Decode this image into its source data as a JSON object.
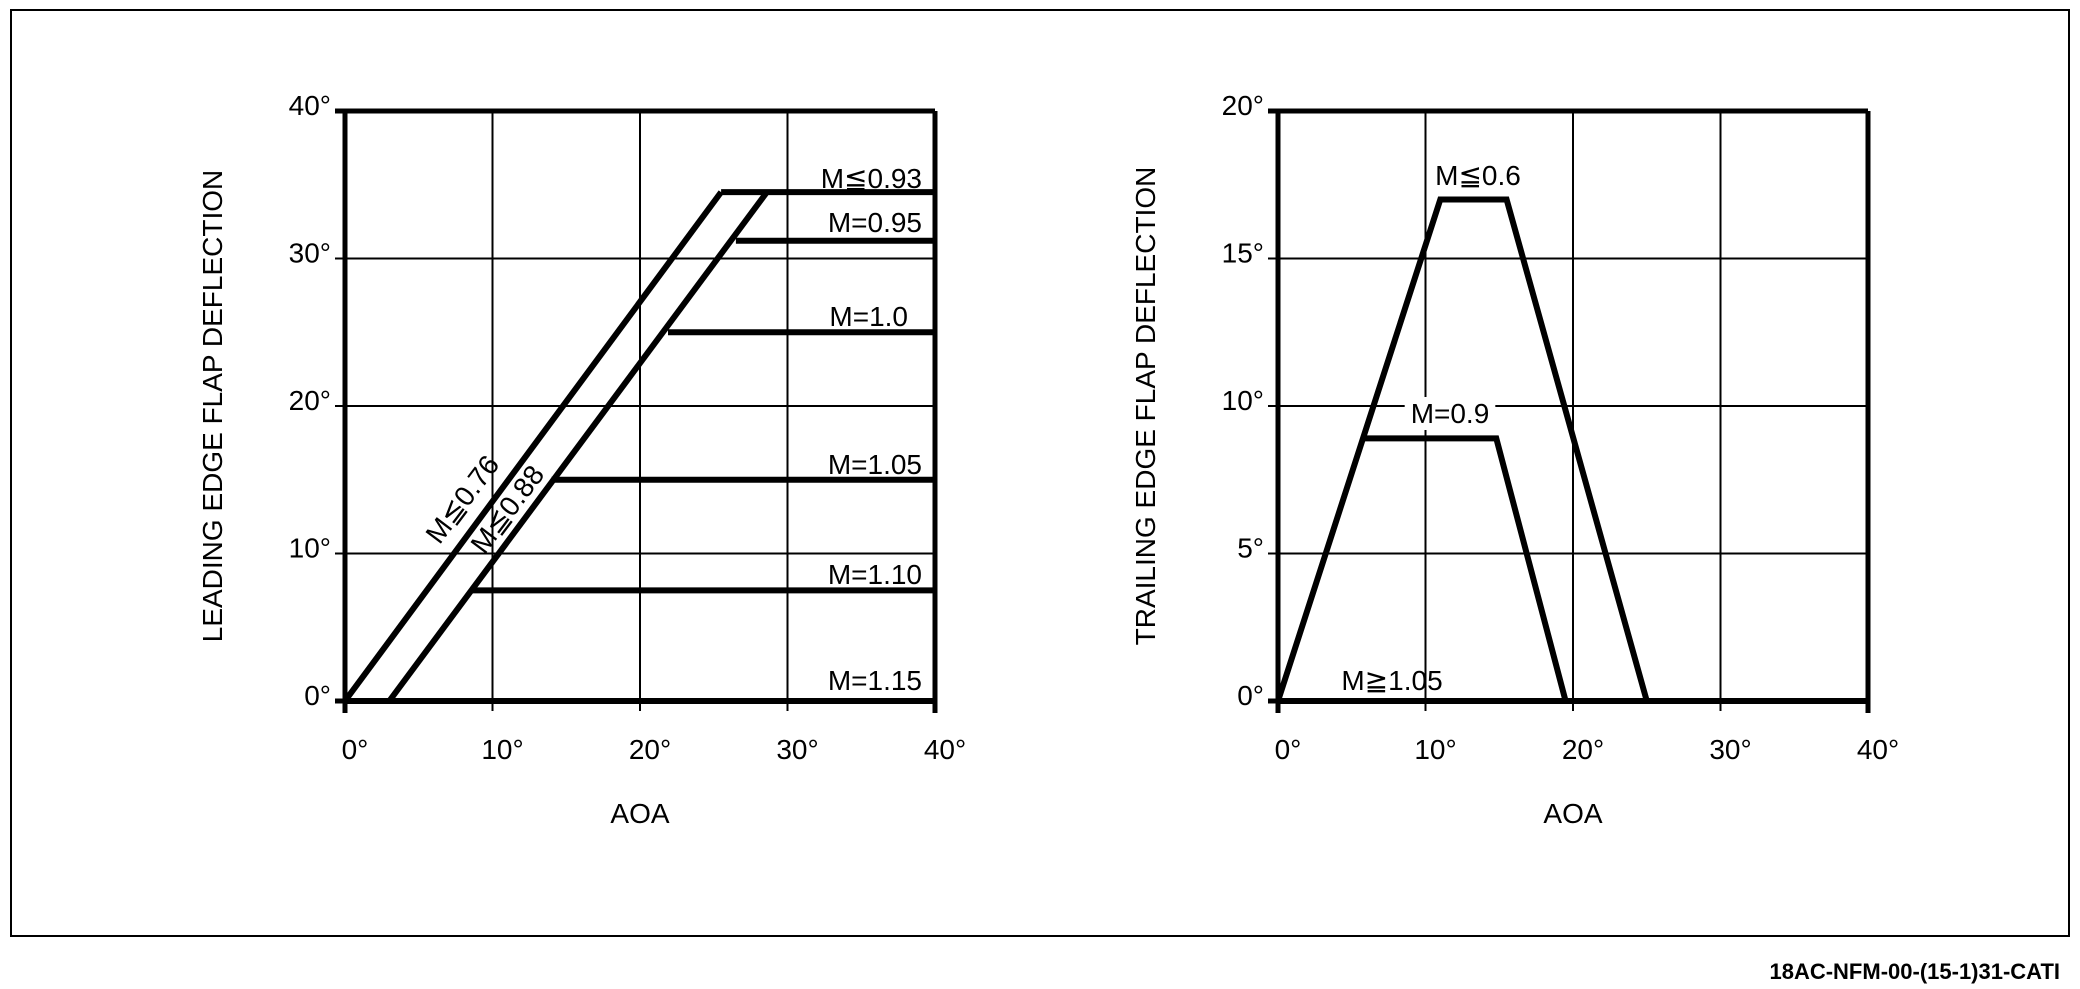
{
  "reference_code": "18AC-NFM-00-(15-1)31-CATI",
  "chart_data": [
    {
      "type": "line",
      "xlabel": "AOA",
      "ylabel": "LEADING EDGE FLAP DEFLECTION",
      "xlim": [
        0,
        40
      ],
      "ylim": [
        0,
        40
      ],
      "x_ticks": [
        "0°",
        "10°",
        "20°",
        "30°",
        "40°"
      ],
      "y_ticks": [
        "0°",
        "10°",
        "20°",
        "30°",
        "40°"
      ],
      "grid": true,
      "series": [
        {
          "name": "M≦0.76",
          "x": [
            0,
            25.5
          ],
          "y": [
            0,
            34.5
          ]
        },
        {
          "name": "M≦0.88",
          "x": [
            3,
            28.6
          ],
          "y": [
            0,
            34.5
          ]
        },
        {
          "name": "M≦0.93",
          "x": [
            25.5,
            40
          ],
          "y": [
            34.5,
            34.5
          ]
        },
        {
          "name": "M=0.95",
          "x": [
            26.5,
            40
          ],
          "y": [
            31.2,
            31.2
          ]
        },
        {
          "name": "M=1.0",
          "x": [
            21.9,
            40
          ],
          "y": [
            25,
            25
          ]
        },
        {
          "name": "M=1.05",
          "x": [
            14,
            40
          ],
          "y": [
            15,
            15
          ]
        },
        {
          "name": "M=1.10",
          "x": [
            8.6,
            40
          ],
          "y": [
            7.5,
            7.5
          ]
        },
        {
          "name": "M=1.15",
          "x": [
            0,
            40
          ],
          "y": [
            0,
            0
          ]
        }
      ]
    },
    {
      "type": "line",
      "xlabel": "AOA",
      "ylabel": "TRAILING EDGE FLAP DEFLECTION",
      "xlim": [
        0,
        40
      ],
      "ylim": [
        0,
        20
      ],
      "x_ticks": [
        "0°",
        "10°",
        "20°",
        "30°",
        "40°"
      ],
      "y_ticks": [
        "0°",
        "5°",
        "10°",
        "15°",
        "20°"
      ],
      "grid": true,
      "series": [
        {
          "name": "M≦0.6",
          "x": [
            0,
            11,
            15.5,
            25
          ],
          "y": [
            0,
            17,
            17,
            0
          ]
        },
        {
          "name": "M=0.9",
          "x": [
            5.9,
            14.8,
            19.5
          ],
          "y": [
            8.9,
            8.9,
            0
          ]
        },
        {
          "name": "M≧1.05",
          "x": [
            0,
            40
          ],
          "y": [
            0,
            0
          ]
        }
      ]
    }
  ]
}
